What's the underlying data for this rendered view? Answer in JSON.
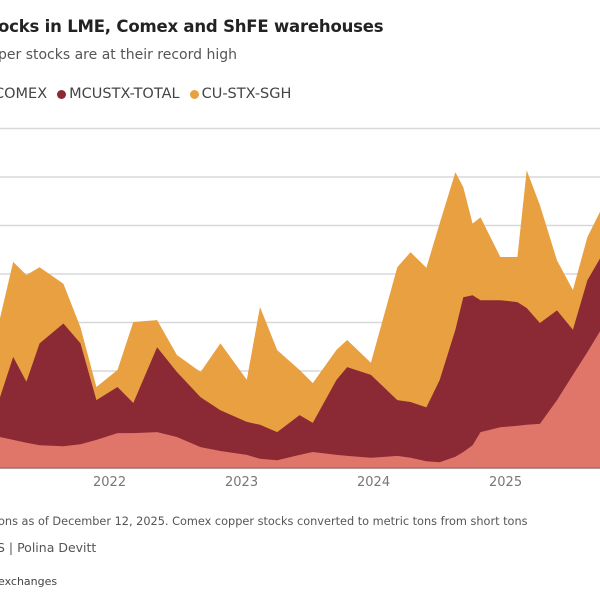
{
  "chart_data": {
    "type": "area",
    "stacked": true,
    "title": "ocks in LME, Comex and ShFE warehouses",
    "subtitle": "per stocks are at their record high",
    "xlabel": "",
    "ylabel": "",
    "x_ticks": [
      "2022",
      "2023",
      "2024",
      "2025"
    ],
    "xlim": [
      2021.17,
      2025.72
    ],
    "ylim": [
      0,
      700
    ],
    "grid": true,
    "legend_position": "top-left",
    "x": [
      2021.17,
      2021.27,
      2021.37,
      2021.47,
      2021.65,
      2021.78,
      2021.9,
      2022.06,
      2022.18,
      2022.36,
      2022.51,
      2022.69,
      2022.84,
      2023.04,
      2023.14,
      2023.27,
      2023.44,
      2023.54,
      2023.72,
      2023.8,
      2023.98,
      2024.18,
      2024.28,
      2024.4,
      2024.5,
      2024.62,
      2024.68,
      2024.75,
      2024.81,
      2024.96,
      2025.09,
      2025.16,
      2025.26,
      2025.39,
      2025.51,
      2025.62,
      2025.72
    ],
    "series": [
      {
        "name": "COMEX",
        "color": "#e0766a",
        "values": [
          64,
          58,
          52,
          47,
          45,
          49,
          58,
          72,
          72,
          74,
          64,
          43,
          35,
          27,
          19,
          16,
          27,
          33,
          27,
          25,
          21,
          25,
          21,
          14,
          12,
          23,
          33,
          47,
          74,
          84,
          87,
          89,
          91,
          140,
          192,
          239,
          284
        ]
      },
      {
        "name": "MCUSTX-TOTAL",
        "color": "#8b2a35",
        "values": [
          82,
          171,
          126,
          210,
          253,
          208,
          82,
          95,
          62,
          175,
          134,
          103,
          84,
          68,
          70,
          58,
          82,
          60,
          155,
          183,
          171,
          115,
          115,
          111,
          169,
          262,
          319,
          309,
          272,
          262,
          255,
          241,
          208,
          185,
          93,
          148,
          150
        ]
      },
      {
        "name": "CU-STX-SGH",
        "color": "#e8a040",
        "values": [
          163,
          196,
          220,
          157,
          82,
          33,
          27,
          35,
          167,
          56,
          35,
          52,
          138,
          87,
          243,
          169,
          93,
          82,
          62,
          56,
          25,
          274,
          309,
          288,
          323,
          325,
          227,
          148,
          171,
          89,
          93,
          284,
          243,
          103,
          82,
          89,
          97
        ]
      }
    ]
  },
  "footer": {
    "note": "ons as of December 12, 2025. Comex copper stocks converted to metric tons from short tons",
    "credit": "S | Polina Devitt",
    "source": "exchanges"
  }
}
